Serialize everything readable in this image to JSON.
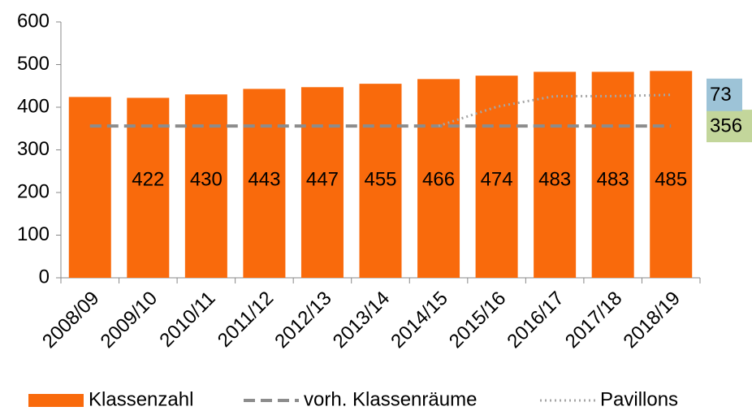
{
  "chart_data": {
    "type": "bar",
    "categories": [
      "2008/09",
      "2009/10",
      "2010/11",
      "2011/12",
      "2012/13",
      "2013/14",
      "2014/15",
      "2015/16",
      "2016/17",
      "2017/18",
      "2018/19"
    ],
    "series": [
      {
        "name": "Klassenzahl",
        "type": "bar",
        "color": "#f96a0c",
        "values": [
          424,
          422,
          430,
          443,
          447,
          455,
          466,
          474,
          483,
          483,
          485
        ],
        "value_labels": [
          null,
          "422",
          "430",
          "443",
          "447",
          "455",
          "466",
          "474",
          "483",
          "483",
          "485"
        ]
      },
      {
        "name": "vorh. Klassenräume",
        "type": "line",
        "dash": "dashed",
        "color": "#8c8c8c",
        "values": [
          356,
          356,
          356,
          356,
          356,
          356,
          356,
          356,
          356,
          356,
          356
        ]
      },
      {
        "name": "Pavillons",
        "type": "line",
        "dash": "dotted",
        "stacked_on": 1,
        "color": "#a6a6a6",
        "values": [
          null,
          null,
          null,
          null,
          null,
          null,
          0,
          45,
          70,
          70,
          73
        ]
      }
    ],
    "ylim": [
      0,
      600
    ],
    "yticks": [
      0,
      100,
      200,
      300,
      400,
      500,
      600
    ],
    "legend": "bottom"
  }
}
